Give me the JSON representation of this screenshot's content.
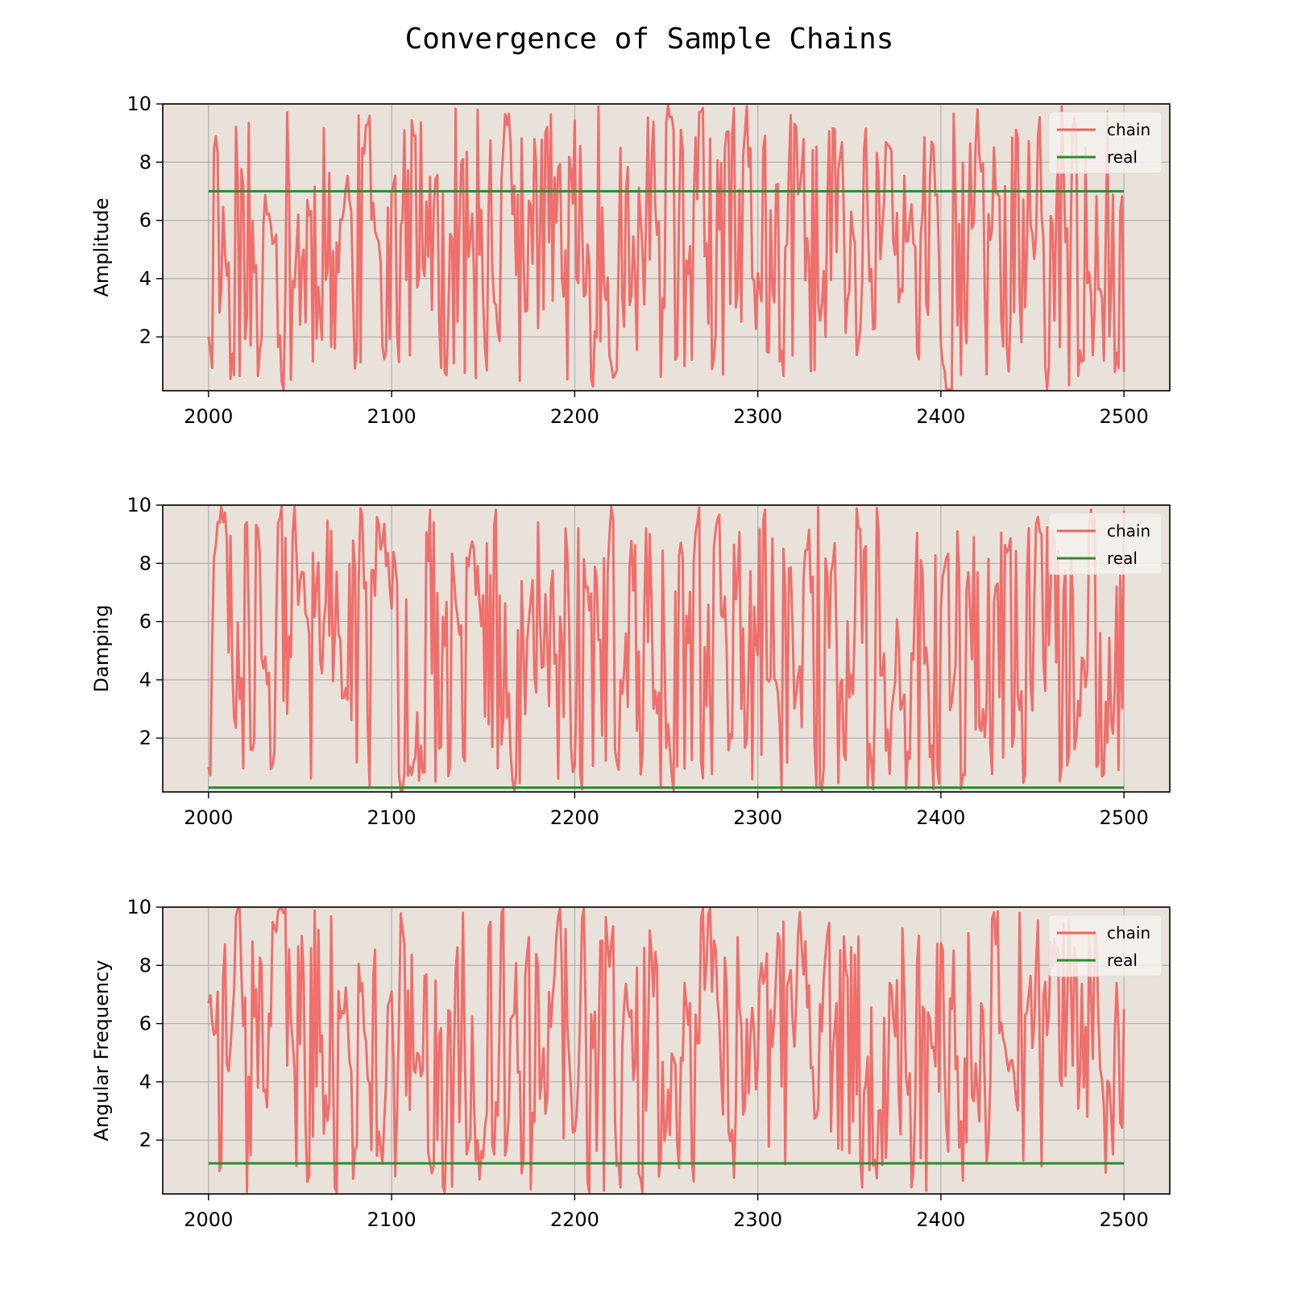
{
  "figure": {
    "title": "Convergence of Sample Chains"
  },
  "style": {
    "plot_background": "#e8e2da",
    "grid_color": "#b0b0b0",
    "chain_color": "#f1625e",
    "real_color": "#2e8b2e",
    "legend_background": "#f5f2ee"
  },
  "chart_data": [
    {
      "type": "line",
      "ylabel": "Amplitude",
      "xlabel": "",
      "xlim": [
        1975,
        2525
      ],
      "ylim": [
        0.15,
        10
      ],
      "xticks": [
        2000,
        2100,
        2200,
        2300,
        2400,
        2500
      ],
      "xtick_labels": [
        "2000",
        "2100",
        "2200",
        "2300",
        "2400",
        "2500"
      ],
      "yticks": [
        2,
        4,
        6,
        8,
        10
      ],
      "ytick_labels": [
        "2",
        "4",
        "6",
        "8",
        "10"
      ],
      "grid": true,
      "legend": "top-right",
      "series": [
        {
          "name": "chain",
          "x_range": [
            2000,
            2500
          ],
          "seed": 11,
          "low": 0.2,
          "high": 9.95,
          "start": 2.0,
          "end": 0.8,
          "note_role": "chain"
        },
        {
          "name": "real",
          "x": [
            2000,
            2500
          ],
          "y": [
            7.0,
            7.0
          ]
        }
      ]
    },
    {
      "type": "line",
      "ylabel": "Damping",
      "xlabel": "",
      "xlim": [
        1975,
        2525
      ],
      "ylim": [
        0.15,
        10
      ],
      "xticks": [
        2000,
        2100,
        2200,
        2300,
        2400,
        2500
      ],
      "xtick_labels": [
        "2000",
        "2100",
        "2200",
        "2300",
        "2400",
        "2500"
      ],
      "yticks": [
        2,
        4,
        6,
        8,
        10
      ],
      "ytick_labels": [
        "2",
        "4",
        "6",
        "8",
        "10"
      ],
      "grid": true,
      "legend": "top-right",
      "series": [
        {
          "name": "chain",
          "x_range": [
            2000,
            2500
          ],
          "seed": 23,
          "low": 0.2,
          "high": 9.95,
          "start": 1.0,
          "end": 9.8,
          "note_role": "chain"
        },
        {
          "name": "real",
          "x": [
            2000,
            2500
          ],
          "y": [
            0.3,
            0.3
          ]
        }
      ]
    },
    {
      "type": "line",
      "ylabel": "Angular Frequency",
      "xlabel": "",
      "xlim": [
        1975,
        2525
      ],
      "ylim": [
        0.15,
        10
      ],
      "xticks": [
        2000,
        2100,
        2200,
        2300,
        2400,
        2500
      ],
      "xtick_labels": [
        "2000",
        "2100",
        "2200",
        "2300",
        "2400",
        "2500"
      ],
      "yticks": [
        2,
        4,
        6,
        8,
        10
      ],
      "ytick_labels": [
        "2",
        "4",
        "6",
        "8",
        "10"
      ],
      "grid": true,
      "legend": "top-right",
      "series": [
        {
          "name": "chain",
          "x_range": [
            2000,
            2500
          ],
          "seed": 37,
          "low": 0.2,
          "high": 9.95,
          "start": 6.7,
          "end": 6.5,
          "note_role": "chain"
        },
        {
          "name": "real",
          "x": [
            2000,
            2500
          ],
          "y": [
            1.2,
            1.2
          ]
        }
      ]
    }
  ]
}
